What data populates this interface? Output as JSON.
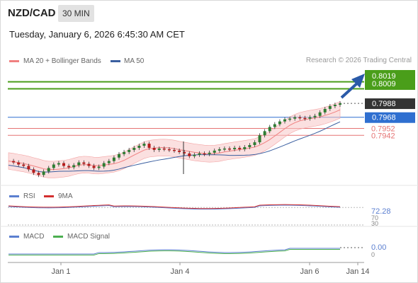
{
  "header": {
    "pair": "NZD/CAD",
    "timeframe": "30 MIN",
    "datetime": "Tuesday, January 6, 2026 6:45:30 AM CET",
    "credit": "Research © 2026 Trading Central"
  },
  "colors": {
    "bollinger": "#f08080",
    "ma50": "#3a5fa0",
    "resistance": "#4a9e1a",
    "support": "#e57373",
    "pivot": "#2f6fd0",
    "current": "#333333",
    "candle_up": "#2e7d32",
    "candle_down": "#b71c1c",
    "rsi": "#5b7fd0",
    "rsi_ma": "#d32f2f",
    "macd": "#5b7fd0",
    "macd_signal": "#4caf50"
  },
  "chart_data": {
    "type": "candlestick",
    "legend": [
      "MA 20 + Bollinger Bands",
      "MA 50"
    ],
    "y_range": [
      0.787,
      0.804
    ],
    "x_ticks": [
      "Jan 1",
      "Jan 4",
      "Jan 6",
      "Jan 14"
    ],
    "price_levels": [
      {
        "label": "0.8019",
        "value": 0.8019,
        "kind": "resistance"
      },
      {
        "label": "0.8009",
        "value": 0.8009,
        "kind": "resistance"
      },
      {
        "label": "0.7988",
        "value": 0.7988,
        "kind": "current"
      },
      {
        "label": "0.7968",
        "value": 0.7968,
        "kind": "pivot"
      },
      {
        "label": "0.7952",
        "value": 0.7952,
        "kind": "support"
      },
      {
        "label": "0.7942",
        "value": 0.7942,
        "kind": "support"
      }
    ],
    "close_path": [
      0.7905,
      0.7903,
      0.79,
      0.7898,
      0.7893,
      0.7888,
      0.7885,
      0.789,
      0.7895,
      0.79,
      0.7902,
      0.7898,
      0.7896,
      0.7899,
      0.7903,
      0.7901,
      0.7898,
      0.7895,
      0.7897,
      0.7902,
      0.7905,
      0.791,
      0.7915,
      0.7918,
      0.7921,
      0.7924,
      0.7927,
      0.793,
      0.7924,
      0.7921,
      0.7923,
      0.7922,
      0.7921,
      0.792,
      0.7918,
      0.7916,
      0.7912,
      0.7914,
      0.7916,
      0.7915,
      0.7917,
      0.792,
      0.7922,
      0.7923,
      0.7922,
      0.7924,
      0.7922,
      0.7925,
      0.7928,
      0.7932,
      0.7942,
      0.7948,
      0.7954,
      0.7958,
      0.7962,
      0.7965,
      0.7966,
      0.7968,
      0.7967,
      0.7966,
      0.7968,
      0.797,
      0.7975,
      0.798,
      0.7984,
      0.7986,
      0.7988
    ],
    "rsi": {
      "label": "RSI",
      "ma_label": "9MA",
      "value": "72.28",
      "value_num": 72.28,
      "ticks": [
        "70",
        "30"
      ]
    },
    "macd": {
      "label": "MACD",
      "signal_label": "MACD Signal",
      "value": "0.00",
      "value_num": 0.0,
      "ticks": [
        "0"
      ]
    }
  }
}
